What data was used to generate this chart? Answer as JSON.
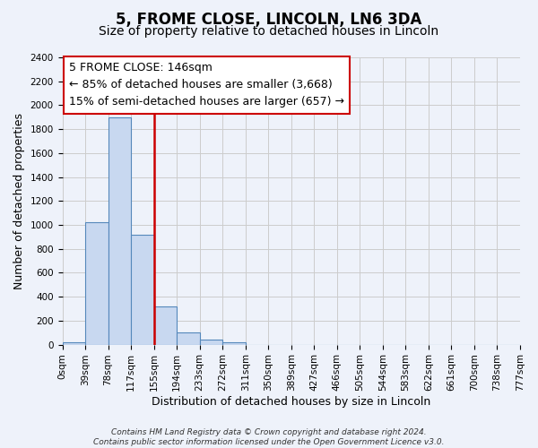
{
  "title": "5, FROME CLOSE, LINCOLN, LN6 3DA",
  "subtitle": "Size of property relative to detached houses in Lincoln",
  "xlabel": "Distribution of detached houses by size in Lincoln",
  "ylabel": "Number of detached properties",
  "bin_labels": [
    "0sqm",
    "39sqm",
    "78sqm",
    "117sqm",
    "155sqm",
    "194sqm",
    "233sqm",
    "272sqm",
    "311sqm",
    "350sqm",
    "389sqm",
    "427sqm",
    "466sqm",
    "505sqm",
    "544sqm",
    "583sqm",
    "622sqm",
    "661sqm",
    "700sqm",
    "738sqm",
    "777sqm"
  ],
  "bar_values": [
    20,
    1025,
    1900,
    920,
    320,
    105,
    45,
    20,
    0,
    0,
    0,
    0,
    0,
    0,
    0,
    0,
    0,
    0,
    0,
    0
  ],
  "bar_color": "#c8d8f0",
  "bar_edge_color": "#5588bb",
  "property_line_x": 4,
  "property_line_color": "#cc0000",
  "annotation_text": "5 FROME CLOSE: 146sqm\n← 85% of detached houses are smaller (3,668)\n15% of semi-detached houses are larger (657) →",
  "annotation_box_color": "#ffffff",
  "annotation_box_edge_color": "#cc0000",
  "ylim": [
    0,
    2400
  ],
  "yticks": [
    0,
    200,
    400,
    600,
    800,
    1000,
    1200,
    1400,
    1600,
    1800,
    2000,
    2200,
    2400
  ],
  "grid_color": "#cccccc",
  "background_color": "#eef2fa",
  "footer_text": "Contains HM Land Registry data © Crown copyright and database right 2024.\nContains public sector information licensed under the Open Government Licence v3.0.",
  "title_fontsize": 12,
  "subtitle_fontsize": 10,
  "label_fontsize": 9,
  "tick_fontsize": 7.5,
  "annotation_fontsize": 9
}
